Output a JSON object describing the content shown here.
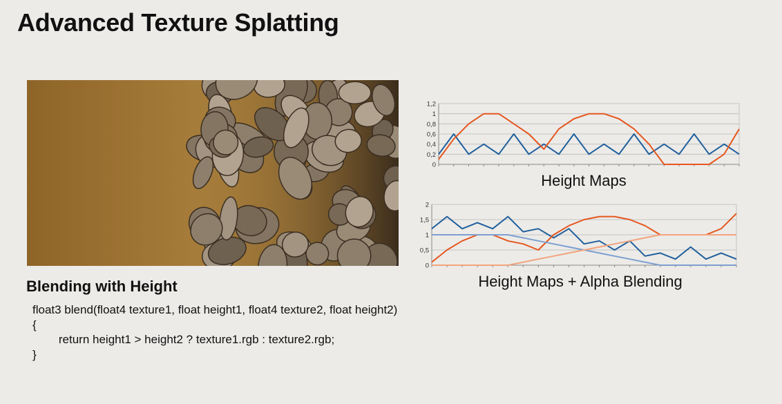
{
  "slide": {
    "title": "Advanced Texture Splatting",
    "subtitle": "Blending with Height",
    "code": [
      "float3 blend(float4 texture1, float height1, float4 texture2, float height2)",
      "{",
      "    return height1 > height2 ? texture1.rgb : texture2.rgb;",
      "}"
    ]
  },
  "colors": {
    "blue": "#1f5f9c",
    "orange": "#e5561d",
    "light_blue": "#7d9fd0",
    "light_orange": "#f3a37c"
  },
  "chart_data": [
    {
      "type": "line",
      "title": "Height Maps",
      "ylim": [
        0,
        1.2
      ],
      "yticks": [
        "0",
        "0,2",
        "0,4",
        "0,6",
        "0,8",
        "1",
        "1,2"
      ],
      "grid": true,
      "x": [
        0,
        1,
        2,
        3,
        4,
        5,
        6,
        7,
        8,
        9,
        10,
        11,
        12,
        13,
        14,
        15,
        16,
        17,
        18,
        19,
        20
      ],
      "series": [
        {
          "color": "#1f5f9c",
          "values": [
            0.2,
            0.6,
            0.2,
            0.4,
            0.2,
            0.6,
            0.2,
            0.4,
            0.2,
            0.6,
            0.2,
            0.4,
            0.2,
            0.6,
            0.2,
            0.4,
            0.2,
            0.6,
            0.2,
            0.4,
            0.2
          ]
        },
        {
          "color": "#e5561d",
          "values": [
            0.1,
            0.5,
            0.8,
            1.0,
            1.0,
            0.8,
            0.6,
            0.3,
            0.7,
            0.9,
            1.0,
            1.0,
            0.9,
            0.7,
            0.4,
            0.0,
            0.0,
            0.0,
            0.0,
            0.2,
            0.7
          ]
        }
      ]
    },
    {
      "type": "line",
      "title": "Height Maps + Alpha Blending",
      "ylim": [
        0,
        2
      ],
      "yticks": [
        "0",
        "0,5",
        "1",
        "1,5",
        "2"
      ],
      "grid": true,
      "x": [
        0,
        1,
        2,
        3,
        4,
        5,
        6,
        7,
        8,
        9,
        10,
        11,
        12,
        13,
        14,
        15,
        16,
        17,
        18,
        19,
        20
      ],
      "series": [
        {
          "color": "#1f5f9c",
          "values": [
            1.2,
            1.6,
            1.2,
            1.4,
            1.2,
            1.6,
            1.1,
            1.2,
            0.9,
            1.2,
            0.7,
            0.8,
            0.5,
            0.8,
            0.3,
            0.4,
            0.2,
            0.6,
            0.2,
            0.4,
            0.2
          ]
        },
        {
          "color": "#e5561d",
          "values": [
            0.1,
            0.5,
            0.8,
            1.0,
            1.0,
            0.8,
            0.7,
            0.5,
            1.0,
            1.3,
            1.5,
            1.6,
            1.6,
            1.5,
            1.3,
            1.0,
            1.0,
            1.0,
            1.0,
            1.2,
            1.7
          ]
        },
        {
          "color": "#7d9fd0",
          "values": [
            1.0,
            1.0,
            1.0,
            1.0,
            1.0,
            1.0,
            0.9,
            0.8,
            0.7,
            0.6,
            0.5,
            0.4,
            0.3,
            0.2,
            0.1,
            0.0,
            0.0,
            0.0,
            0.0,
            0.0,
            0.0
          ]
        },
        {
          "color": "#f3a37c",
          "values": [
            0.0,
            0.0,
            0.0,
            0.0,
            0.0,
            0.0,
            0.1,
            0.2,
            0.3,
            0.4,
            0.5,
            0.6,
            0.7,
            0.8,
            0.9,
            1.0,
            1.0,
            1.0,
            1.0,
            1.0,
            1.0
          ]
        }
      ]
    }
  ]
}
